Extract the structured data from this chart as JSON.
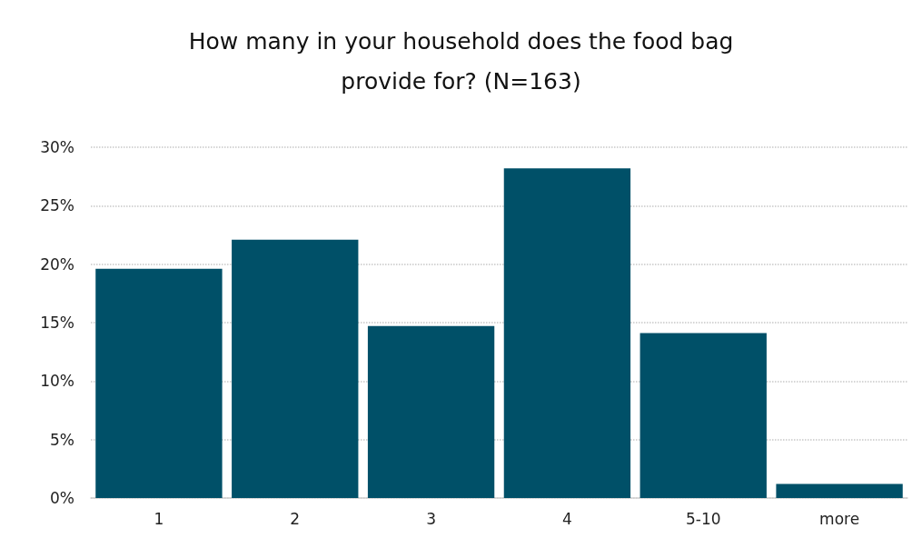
{
  "chart_data": {
    "type": "bar",
    "title": "How many in your household does the food bag\nprovide for? (N=163)",
    "categories": [
      "1",
      "2",
      "3",
      "4",
      "5-10",
      "more"
    ],
    "values": [
      19.6,
      22.1,
      14.7,
      28.2,
      14.1,
      1.2
    ],
    "color": "#005068",
    "ylim": [
      0,
      30
    ],
    "yticks": [
      {
        "value": 0,
        "label": "0%"
      },
      {
        "value": 5,
        "label": "5%"
      },
      {
        "value": 10,
        "label": "10%"
      },
      {
        "value": 15,
        "label": "15%"
      },
      {
        "value": 20,
        "label": "20%"
      },
      {
        "value": 25,
        "label": "25%"
      },
      {
        "value": 30,
        "label": "30%"
      }
    ],
    "grid": "y"
  }
}
